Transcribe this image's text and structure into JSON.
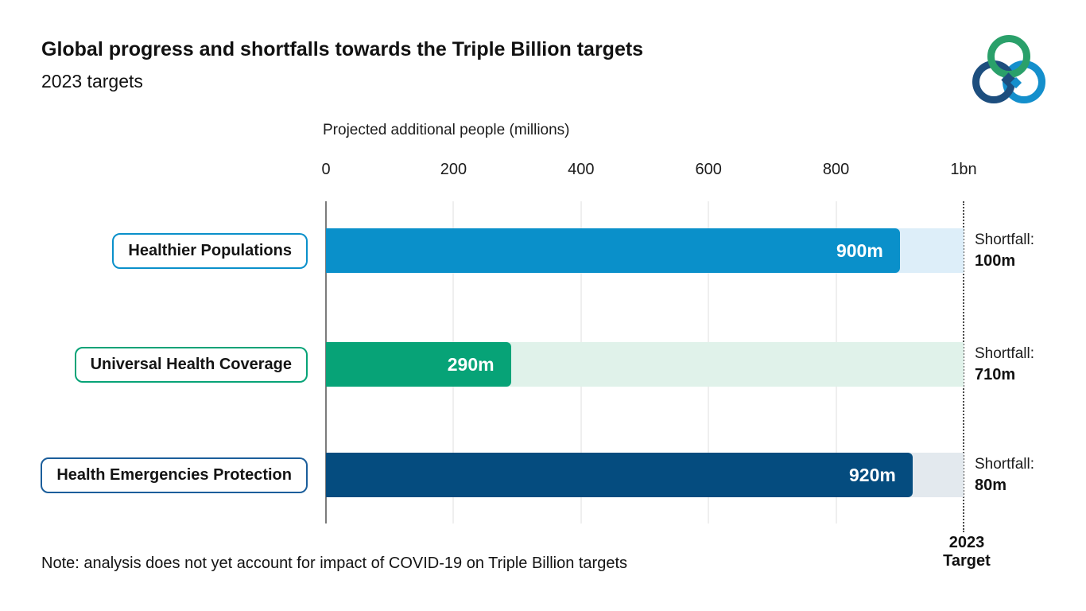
{
  "header": {
    "title": "Global progress and shortfalls towards the Triple Billion targets",
    "subtitle": "2023 targets"
  },
  "logo": {
    "name": "triple-billion-logo",
    "ring_colors": {
      "green": "#2aa06a",
      "navy": "#1d4e7e",
      "blue": "#148fcc"
    }
  },
  "chart_data": {
    "type": "bar",
    "orientation": "horizontal",
    "title": "Global progress and shortfalls towards the Triple Billion targets",
    "subtitle": "2023 targets",
    "xlabel": "Projected additional people (millions)",
    "xlim": [
      0,
      1000
    ],
    "grid": true,
    "ticks": [
      {
        "value": 0,
        "label": "0"
      },
      {
        "value": 200,
        "label": "200"
      },
      {
        "value": 400,
        "label": "400"
      },
      {
        "value": 600,
        "label": "600"
      },
      {
        "value": 800,
        "label": "800"
      },
      {
        "value": 1000,
        "label": "1bn"
      }
    ],
    "target_value": 1000,
    "rows": [
      {
        "label": "Healthier Populations",
        "value": 900,
        "value_label": "900m",
        "shortfall": 100,
        "shortfall_label": "100m",
        "bar_color": "#0a90ca",
        "band_color": "#ddeef9",
        "box_border_color": "#0a90ca"
      },
      {
        "label": "Universal Health Coverage",
        "value": 290,
        "value_label": "290m",
        "shortfall": 710,
        "shortfall_label": "710m",
        "bar_color": "#07a377",
        "band_color": "#e0f2ea",
        "box_border_color": "#07a377"
      },
      {
        "label": "Health Emergencies Protection",
        "value": 920,
        "value_label": "920m",
        "shortfall": 80,
        "shortfall_label": "80m",
        "bar_color": "#054c7f",
        "band_color": "#e3e9ee",
        "box_border_color": "#1b5e9b"
      }
    ],
    "shortfall_prefix": "Shortfall:",
    "target_caption_line1": "2023",
    "target_caption_line2": "Target"
  },
  "note": "Note: analysis does not yet account for impact of COVID-19 on Triple Billion targets"
}
